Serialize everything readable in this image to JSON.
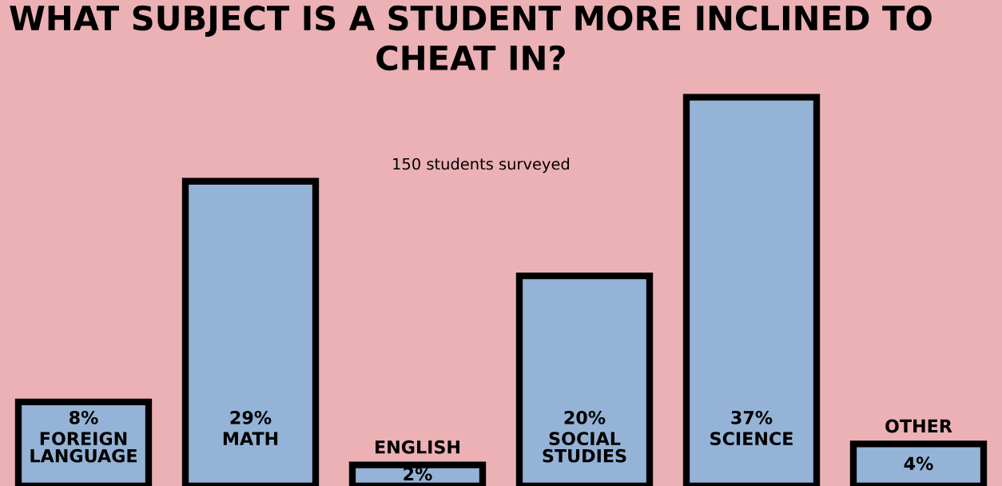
{
  "chart_data": {
    "type": "bar",
    "title": "WHAT SUBJECT IS A STUDENT MORE INCLINED TO CHEAT IN?",
    "subtitle": "150 students surveyed",
    "categories": [
      "FOREIGN LANGUAGE",
      "MATH",
      "ENGLISH",
      "SOCIAL STUDIES",
      "SCIENCE",
      "OTHER"
    ],
    "values": [
      8,
      29,
      2,
      20,
      37,
      4
    ],
    "value_labels": [
      "8%",
      "29%",
      "2%",
      "20%",
      "37%",
      "4%"
    ],
    "color": "#94b3d6"
  }
}
